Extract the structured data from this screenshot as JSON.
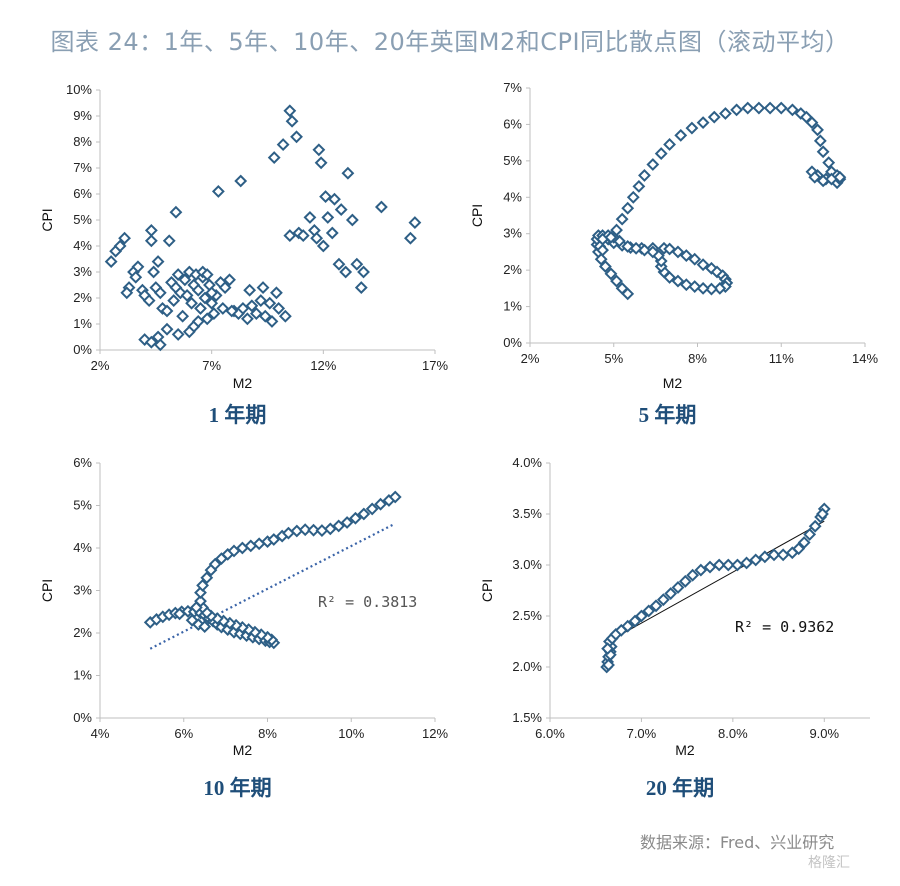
{
  "figure": {
    "title": "图表 24：1年、5年、10年、20年英国M2和CPI同比散点图（滚动平均）",
    "source": "数据来源：Fred、兴业研究",
    "watermark": "格隆汇"
  },
  "colors": {
    "marker": "#2e5f86",
    "trend": "#3a64a8",
    "fitline": "#111111",
    "caption": "#1f4e79",
    "title": "#8a9fb3"
  },
  "chart_data": [
    {
      "type": "scatter",
      "caption": "1 年期",
      "xlabel": "M2",
      "ylabel": "CPI",
      "xlim": [
        2,
        17
      ],
      "ylim": [
        0,
        10
      ],
      "xticks": [
        2,
        7,
        12,
        17
      ],
      "xtick_labels": [
        "2%",
        "7%",
        "12%",
        "17%"
      ],
      "yticks": [
        0,
        1,
        2,
        3,
        4,
        5,
        6,
        7,
        8,
        9,
        10
      ],
      "ytick_labels": [
        "0%",
        "1%",
        "2%",
        "3%",
        "4%",
        "5%",
        "6%",
        "7%",
        "8%",
        "9%",
        "10%"
      ],
      "points": [
        [
          2.5,
          3.4
        ],
        [
          2.7,
          3.8
        ],
        [
          2.9,
          4.0
        ],
        [
          3.1,
          4.3
        ],
        [
          3.3,
          2.4
        ],
        [
          3.2,
          2.2
        ],
        [
          3.5,
          3.0
        ],
        [
          3.6,
          2.8
        ],
        [
          3.7,
          3.2
        ],
        [
          3.9,
          2.3
        ],
        [
          4.0,
          2.1
        ],
        [
          4.2,
          1.9
        ],
        [
          4.3,
          4.6
        ],
        [
          4.3,
          4.2
        ],
        [
          4.4,
          3.0
        ],
        [
          4.6,
          3.4
        ],
        [
          4.5,
          2.4
        ],
        [
          4.7,
          2.2
        ],
        [
          4.8,
          1.6
        ],
        [
          5.0,
          1.5
        ],
        [
          5.1,
          4.2
        ],
        [
          5.2,
          2.6
        ],
        [
          5.3,
          1.9
        ],
        [
          5.4,
          5.3
        ],
        [
          5.4,
          2.4
        ],
        [
          5.5,
          2.9
        ],
        [
          5.6,
          2.2
        ],
        [
          5.7,
          1.3
        ],
        [
          5.8,
          2.7
        ],
        [
          5.9,
          2.1
        ],
        [
          6.0,
          3.0
        ],
        [
          6.1,
          1.8
        ],
        [
          6.2,
          2.5
        ],
        [
          6.2,
          0.9
        ],
        [
          6.3,
          2.9
        ],
        [
          6.4,
          2.3
        ],
        [
          6.5,
          1.6
        ],
        [
          6.6,
          2.8
        ],
        [
          6.7,
          2.0
        ],
        [
          6.8,
          1.2
        ],
        [
          6.9,
          2.5
        ],
        [
          7.0,
          1.8
        ],
        [
          7.1,
          1.4
        ],
        [
          7.2,
          2.1
        ],
        [
          7.3,
          6.1
        ],
        [
          7.4,
          2.6
        ],
        [
          7.5,
          1.6
        ],
        [
          7.6,
          2.4
        ],
        [
          7.8,
          2.7
        ],
        [
          8.0,
          1.5
        ],
        [
          8.2,
          1.4
        ],
        [
          8.3,
          6.5
        ],
        [
          8.4,
          1.6
        ],
        [
          8.6,
          1.2
        ],
        [
          8.7,
          2.3
        ],
        [
          8.8,
          1.7
        ],
        [
          9.0,
          1.4
        ],
        [
          9.2,
          1.9
        ],
        [
          9.3,
          2.4
        ],
        [
          9.4,
          1.3
        ],
        [
          9.6,
          1.8
        ],
        [
          9.7,
          1.1
        ],
        [
          9.8,
          7.4
        ],
        [
          9.9,
          2.2
        ],
        [
          10.0,
          1.6
        ],
        [
          10.2,
          7.9
        ],
        [
          10.3,
          1.3
        ],
        [
          10.5,
          9.2
        ],
        [
          10.6,
          8.8
        ],
        [
          10.5,
          4.4
        ],
        [
          10.8,
          8.2
        ],
        [
          10.9,
          4.5
        ],
        [
          11.1,
          4.4
        ],
        [
          11.4,
          5.1
        ],
        [
          11.6,
          4.6
        ],
        [
          11.8,
          7.7
        ],
        [
          11.9,
          7.2
        ],
        [
          11.7,
          4.3
        ],
        [
          12.0,
          4.0
        ],
        [
          12.1,
          5.9
        ],
        [
          12.2,
          5.1
        ],
        [
          12.4,
          4.5
        ],
        [
          12.5,
          5.8
        ],
        [
          12.7,
          3.3
        ],
        [
          12.8,
          5.4
        ],
        [
          13.0,
          3.0
        ],
        [
          13.1,
          6.8
        ],
        [
          13.3,
          5.0
        ],
        [
          13.5,
          3.3
        ],
        [
          13.8,
          3.0
        ],
        [
          13.7,
          2.4
        ],
        [
          14.6,
          5.5
        ],
        [
          15.9,
          4.3
        ],
        [
          16.1,
          4.9
        ],
        [
          4.0,
          0.4
        ],
        [
          4.3,
          0.3
        ],
        [
          4.6,
          0.5
        ],
        [
          4.7,
          0.2
        ],
        [
          5.0,
          0.8
        ],
        [
          5.5,
          0.6
        ],
        [
          6.0,
          0.7
        ],
        [
          6.4,
          1.1
        ],
        [
          6.6,
          3.0
        ],
        [
          6.8,
          2.9
        ],
        [
          7.0,
          2.2
        ],
        [
          7.9,
          1.5
        ]
      ]
    },
    {
      "type": "scatter",
      "caption": "5 年期",
      "xlabel": "M2",
      "ylabel": "CPI",
      "xlim": [
        2,
        14
      ],
      "ylim": [
        0,
        7
      ],
      "xticks": [
        2,
        5,
        8,
        11,
        14
      ],
      "xtick_labels": [
        "2%",
        "5%",
        "8%",
        "11%",
        "14%"
      ],
      "yticks": [
        0,
        1,
        2,
        3,
        4,
        5,
        6,
        7
      ],
      "ytick_labels": [
        "0%",
        "1%",
        "2%",
        "3%",
        "4%",
        "5%",
        "6%",
        "7%"
      ],
      "points": [
        [
          5.5,
          1.35
        ],
        [
          5.3,
          1.5
        ],
        [
          5.1,
          1.7
        ],
        [
          4.9,
          1.9
        ],
        [
          4.7,
          2.1
        ],
        [
          4.55,
          2.3
        ],
        [
          4.45,
          2.5
        ],
        [
          4.4,
          2.7
        ],
        [
          4.4,
          2.85
        ],
        [
          4.45,
          2.95
        ],
        [
          4.6,
          2.95
        ],
        [
          4.8,
          2.85
        ],
        [
          5.0,
          2.75
        ],
        [
          5.3,
          2.68
        ],
        [
          5.6,
          2.62
        ],
        [
          6.0,
          2.6
        ],
        [
          6.4,
          2.6
        ],
        [
          6.8,
          2.6
        ],
        [
          7.0,
          2.58
        ],
        [
          7.3,
          2.5
        ],
        [
          7.6,
          2.4
        ],
        [
          7.9,
          2.3
        ],
        [
          8.2,
          2.15
        ],
        [
          8.5,
          2.05
        ],
        [
          8.7,
          1.95
        ],
        [
          8.9,
          1.85
        ],
        [
          9.0,
          1.75
        ],
        [
          9.05,
          1.65
        ],
        [
          9.0,
          1.55
        ],
        [
          8.8,
          1.5
        ],
        [
          8.5,
          1.48
        ],
        [
          8.2,
          1.5
        ],
        [
          7.9,
          1.55
        ],
        [
          7.6,
          1.6
        ],
        [
          7.3,
          1.7
        ],
        [
          7.0,
          1.8
        ],
        [
          6.8,
          1.95
        ],
        [
          6.7,
          2.1
        ],
        [
          6.7,
          2.25
        ],
        [
          6.6,
          2.4
        ],
        [
          6.4,
          2.5
        ],
        [
          6.1,
          2.55
        ],
        [
          5.8,
          2.6
        ],
        [
          5.5,
          2.65
        ],
        [
          5.2,
          2.8
        ],
        [
          5.0,
          2.9
        ],
        [
          4.8,
          2.95
        ],
        [
          4.6,
          2.85
        ],
        [
          4.5,
          2.65
        ],
        [
          4.6,
          2.55
        ],
        [
          4.9,
          2.9
        ],
        [
          5.1,
          3.1
        ],
        [
          5.3,
          3.4
        ],
        [
          5.5,
          3.7
        ],
        [
          5.7,
          4.0
        ],
        [
          5.9,
          4.3
        ],
        [
          6.1,
          4.6
        ],
        [
          6.4,
          4.9
        ],
        [
          6.7,
          5.2
        ],
        [
          7.0,
          5.45
        ],
        [
          7.4,
          5.7
        ],
        [
          7.8,
          5.9
        ],
        [
          8.2,
          6.05
        ],
        [
          8.6,
          6.2
        ],
        [
          9.0,
          6.3
        ],
        [
          9.4,
          6.4
        ],
        [
          9.8,
          6.45
        ],
        [
          10.2,
          6.45
        ],
        [
          10.6,
          6.45
        ],
        [
          11.0,
          6.45
        ],
        [
          11.4,
          6.4
        ],
        [
          11.7,
          6.3
        ],
        [
          11.9,
          6.2
        ],
        [
          12.1,
          6.05
        ],
        [
          12.3,
          5.85
        ],
        [
          12.4,
          5.55
        ],
        [
          12.5,
          5.25
        ],
        [
          12.7,
          4.95
        ],
        [
          12.8,
          4.7
        ],
        [
          12.9,
          4.5
        ],
        [
          13.0,
          4.4
        ],
        [
          13.1,
          4.5
        ],
        [
          13.0,
          4.6
        ],
        [
          12.6,
          4.5
        ],
        [
          12.3,
          4.6
        ],
        [
          12.1,
          4.7
        ],
        [
          12.2,
          4.55
        ],
        [
          12.5,
          4.45
        ],
        [
          12.8,
          4.5
        ],
        [
          13.1,
          4.55
        ]
      ]
    },
    {
      "type": "scatter",
      "caption": "10 年期",
      "xlabel": "M2",
      "ylabel": "CPI",
      "xlim": [
        4,
        12
      ],
      "ylim": [
        0,
        6
      ],
      "xticks": [
        4,
        6,
        8,
        10,
        12
      ],
      "xtick_labels": [
        "4%",
        "6%",
        "8%",
        "10%",
        "12%"
      ],
      "yticks": [
        0,
        1,
        2,
        3,
        4,
        5,
        6
      ],
      "ytick_labels": [
        "0%",
        "1%",
        "2%",
        "3%",
        "4%",
        "5%",
        "6%"
      ],
      "r2_label": "R² = 0.3813",
      "trendline": [
        [
          5.2,
          1.63
        ],
        [
          11.0,
          4.55
        ]
      ],
      "points": [
        [
          5.2,
          2.25
        ],
        [
          5.35,
          2.32
        ],
        [
          5.5,
          2.38
        ],
        [
          5.65,
          2.43
        ],
        [
          5.8,
          2.47
        ],
        [
          5.95,
          2.5
        ],
        [
          6.1,
          2.51
        ],
        [
          6.25,
          2.5
        ],
        [
          6.4,
          2.47
        ],
        [
          6.5,
          2.42
        ],
        [
          6.6,
          2.35
        ],
        [
          6.7,
          2.28
        ],
        [
          6.8,
          2.2
        ],
        [
          6.9,
          2.14
        ],
        [
          7.05,
          2.08
        ],
        [
          7.2,
          2.02
        ],
        [
          7.35,
          1.98
        ],
        [
          7.5,
          1.94
        ],
        [
          7.65,
          1.9
        ],
        [
          7.8,
          1.86
        ],
        [
          7.95,
          1.82
        ],
        [
          8.05,
          1.79
        ],
        [
          8.15,
          1.77
        ],
        [
          8.1,
          1.84
        ],
        [
          8.0,
          1.9
        ],
        [
          7.85,
          1.96
        ],
        [
          7.7,
          2.02
        ],
        [
          7.55,
          2.08
        ],
        [
          7.4,
          2.13
        ],
        [
          7.25,
          2.18
        ],
        [
          7.1,
          2.23
        ],
        [
          6.95,
          2.28
        ],
        [
          6.8,
          2.34
        ],
        [
          6.65,
          2.4
        ],
        [
          6.55,
          2.48
        ],
        [
          6.45,
          2.6
        ],
        [
          6.4,
          2.75
        ],
        [
          6.4,
          2.95
        ],
        [
          6.45,
          3.12
        ],
        [
          6.55,
          3.3
        ],
        [
          6.65,
          3.48
        ],
        [
          6.75,
          3.62
        ],
        [
          6.9,
          3.75
        ],
        [
          7.05,
          3.85
        ],
        [
          7.2,
          3.93
        ],
        [
          7.4,
          4.0
        ],
        [
          7.6,
          4.05
        ],
        [
          7.8,
          4.1
        ],
        [
          8.0,
          4.15
        ],
        [
          8.15,
          4.2
        ],
        [
          8.35,
          4.28
        ],
        [
          8.5,
          4.35
        ],
        [
          8.7,
          4.4
        ],
        [
          8.9,
          4.43
        ],
        [
          9.1,
          4.42
        ],
        [
          9.3,
          4.41
        ],
        [
          9.5,
          4.45
        ],
        [
          9.7,
          4.52
        ],
        [
          9.9,
          4.6
        ],
        [
          10.1,
          4.7
        ],
        [
          10.3,
          4.8
        ],
        [
          10.5,
          4.92
        ],
        [
          10.7,
          5.03
        ],
        [
          10.9,
          5.12
        ],
        [
          11.05,
          5.2
        ],
        [
          5.9,
          2.45
        ],
        [
          6.2,
          2.3
        ],
        [
          6.35,
          2.2
        ],
        [
          6.5,
          2.15
        ],
        [
          6.3,
          2.6
        ]
      ]
    },
    {
      "type": "scatter",
      "caption": "20 年期",
      "xlabel": "M2",
      "ylabel": "CPI",
      "xlim": [
        6.0,
        9.5
      ],
      "ylim": [
        1.5,
        4.0
      ],
      "xticks": [
        6.0,
        7.0,
        8.0,
        9.0
      ],
      "xtick_labels": [
        "6.0%",
        "7.0%",
        "8.0%",
        "9.0%"
      ],
      "yticks": [
        1.5,
        2.0,
        2.5,
        3.0,
        3.5,
        4.0
      ],
      "ytick_labels": [
        "1.5%",
        "2.0%",
        "2.5%",
        "3.0%",
        "3.5%",
        "4.0%"
      ],
      "r2_label": "R² = 0.9362",
      "trendline": [
        [
          6.62,
          2.24
        ],
        [
          9.0,
          3.43
        ]
      ],
      "points": [
        [
          6.62,
          2.0
        ],
        [
          6.63,
          2.05
        ],
        [
          6.64,
          2.1
        ],
        [
          6.66,
          2.15
        ],
        [
          6.67,
          2.2
        ],
        [
          6.65,
          2.25
        ],
        [
          6.68,
          2.28
        ],
        [
          6.72,
          2.32
        ],
        [
          6.78,
          2.36
        ],
        [
          6.85,
          2.4
        ],
        [
          6.93,
          2.45
        ],
        [
          7.0,
          2.5
        ],
        [
          7.08,
          2.55
        ],
        [
          7.16,
          2.6
        ],
        [
          7.24,
          2.66
        ],
        [
          7.32,
          2.72
        ],
        [
          7.4,
          2.78
        ],
        [
          7.48,
          2.84
        ],
        [
          7.56,
          2.9
        ],
        [
          7.65,
          2.95
        ],
        [
          7.75,
          2.98
        ],
        [
          7.85,
          3.0
        ],
        [
          7.95,
          3.0
        ],
        [
          8.05,
          3.0
        ],
        [
          8.15,
          3.02
        ],
        [
          8.25,
          3.05
        ],
        [
          8.35,
          3.08
        ],
        [
          8.45,
          3.1
        ],
        [
          8.55,
          3.1
        ],
        [
          8.65,
          3.12
        ],
        [
          8.72,
          3.16
        ],
        [
          8.78,
          3.22
        ],
        [
          8.84,
          3.3
        ],
        [
          8.9,
          3.38
        ],
        [
          8.96,
          3.47
        ],
        [
          9.0,
          3.55
        ],
        [
          8.98,
          3.5
        ],
        [
          6.64,
          2.02
        ],
        [
          6.66,
          2.12
        ],
        [
          6.63,
          2.18
        ]
      ]
    }
  ]
}
